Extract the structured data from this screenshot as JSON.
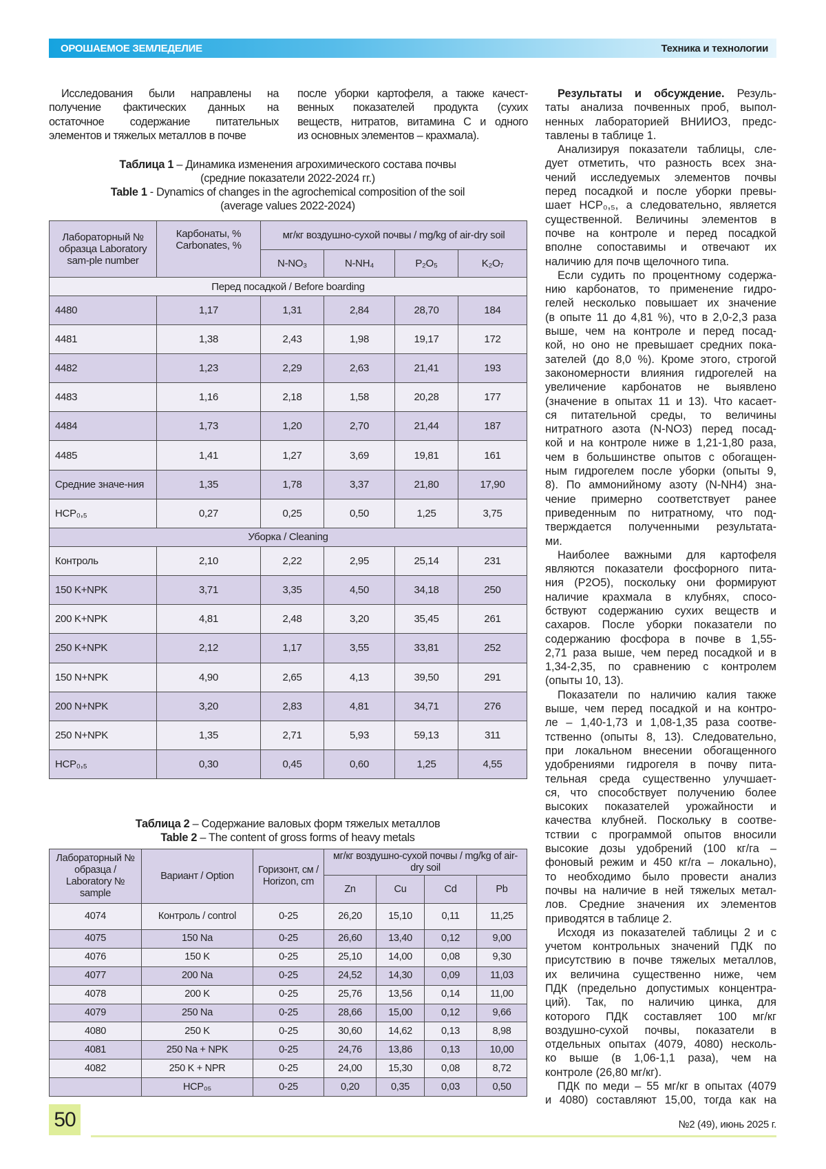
{
  "header": {
    "section": "ОРОШАЕМОЕ ЗЕМЛЕДЕЛИЕ",
    "rubric": "Техника и технологии"
  },
  "intro": {
    "col1": [
      "Исследования были направлены на",
      "получение фактических данных на",
      "остаточное содержание питательных",
      "элементов и тяжелых металлов в почве"
    ],
    "col2": [
      "после уборки картофеля, а также качест-",
      "венных показателей продукта (сухих",
      "веществ, нитратов, витамина С и одного",
      "из основных элементов – крахмала)."
    ]
  },
  "right_column": {
    "heading": "Результаты и обсуждение.",
    "paragraphs": [
      [
        " Резуль-",
        "таты анализа почвенных проб, выпол-",
        "ненных лабораторией ВНИИОЗ, предс-",
        "тавлены в таблице 1."
      ],
      [
        "Анализируя показатели таблицы, сле-",
        "дует отметить, что разность всех зна-",
        "чений исследуемых элементов почвы",
        "перед посадкой и после уборки превы-",
        "шает НСР₀,₅, а следовательно, является",
        "существенной. Величины элементов в",
        "почве на контроле и перед посадкой",
        "вполне сопоставимы и отвечают их",
        "наличию для почв щелочного типа."
      ],
      [
        "Если судить по процентному содержа-",
        "нию карбонатов, то применение гидро-",
        "гелей несколько повышает их значение",
        "(в опыте 11 до 4,81 %), что в 2,0-2,3 раза",
        "выше, чем на контроле и перед посад-",
        "кой, но оно не превышает средних пока-",
        "зателей (до 8,0 %). Кроме этого, строгой",
        "закономерности влияния гидрогелей на",
        "увеличение карбонатов не выявлено",
        "(значение в опытах 11 и 13). Что касает-",
        "ся питательной среды, то величины",
        "нитратного азота (N-NO3) перед посад-",
        "кой и на контроле ниже в 1,21-1,80 раза,",
        "чем в большинстве опытов с обогащен-",
        "ным гидрогелем после уборки (опыты 9,",
        "8). По аммонийному азоту (N-NH4) зна-",
        "чение примерно соответствует ранее",
        "приведенным по нитратному, что под-",
        "тверждается полученными результата-",
        "ми."
      ],
      [
        "Наиболее важными для картофеля",
        "являются показатели фосфорного пита-",
        "ния (P2O5), поскольку они формируют",
        "наличие крахмала в клубнях, спосо-",
        "бствуют содержанию сухих веществ и",
        "сахаров. После уборки показатели по",
        "содержанию фосфора в почве в 1,55-",
        "2,71 раза выше, чем перед посадкой и в",
        "1,34-2,35, по сравнению с контролем",
        "(опыты 10, 13)."
      ],
      [
        "Показатели по наличию калия также",
        "выше, чем перед посадкой и на контро-",
        "ле – 1,40-1,73 и 1,08-1,35 раза соотве-",
        "тственно (опыты 8, 13). Следовательно,",
        "при локальном внесении обогащенного",
        "удобрениями гидрогеля в почву пита-",
        "тельная среда существенно улучшает-",
        "ся, что способствует получению более",
        "высоких показателей урожайности и",
        "качества клубней. Поскольку в соотве-",
        "тствии с программой опытов вносили",
        "высокие дозы удобрений (100 кг/га –",
        "фоновый режим и 450 кг/га – локально),",
        "то необходимо было провести анализ",
        "почвы на наличие в ней тяжелых метал-",
        "лов. Средние значения их элементов",
        "приводятся в таблице 2."
      ],
      [
        "Исходя из показателей таблицы 2 и с",
        "учетом контрольных значений ПДК по",
        "присутствию в почве тяжелых металлов,",
        "их величина существенно ниже, чем",
        "ПДК (предельно допустимых концентра-",
        "ций). Так, по наличию цинка, для",
        "которого ПДК составляет 100 мг/кг",
        "воздушно-сухой почвы, показатели в",
        "отдельных опытах (4079, 4080) несколь-",
        "ко выше (в 1,06-1,1 раза), чем на",
        "контроле (26,80 мг/кг)."
      ],
      [
        "ПДК по меди – 55 мг/кг в опытах (4079",
        "и 4080) составляют 15,00, тогда как на"
      ]
    ]
  },
  "table1": {
    "caption_ru_label": "Таблица 1",
    "caption_ru": " – Динамика изменения агрохимического состава почвы",
    "caption_ru_2": "(средние показатели 2022-2024 гг.)",
    "caption_en_label": "Table 1",
    "caption_en": " - Dynamics of changes in the agrochemical composition of the soil",
    "caption_en_2": "(average values 2022-2024)",
    "headers": {
      "sample": "Лабораторный № образца Laboratory sam-ple number",
      "carbonates": "Карбонаты, % Carbonates, %",
      "units": "мг/кг воздушно-сухой почвы / mg/kg of air-dry soil",
      "cols": [
        "N-NO₃",
        "N-NH₄",
        "P₂O₅",
        "K₂O₇"
      ]
    },
    "sections": [
      {
        "label": "Перед посадкой / Before boarding",
        "rows": [
          [
            "4480",
            "1,17",
            "1,31",
            "2,84",
            "28,70",
            "184"
          ],
          [
            "4481",
            "1,38",
            "2,43",
            "1,98",
            "19,17",
            "172"
          ],
          [
            "4482",
            "1,23",
            "2,29",
            "2,63",
            "21,41",
            "193"
          ],
          [
            "4483",
            "1,16",
            "2,18",
            "1,58",
            "20,28",
            "177"
          ],
          [
            "4484",
            "1,73",
            "1,20",
            "2,70",
            "21,44",
            "187"
          ],
          [
            "4485",
            "1,41",
            "1,27",
            "3,69",
            "19,81",
            "161"
          ],
          [
            "Средние значе-ния",
            "1,35",
            "1,78",
            "3,37",
            "21,80",
            "17,90"
          ],
          [
            "НСР₀,₅",
            "0,27",
            "0,25",
            "0,50",
            "1,25",
            "3,75"
          ]
        ]
      },
      {
        "label": "Уборка / Cleaning",
        "rows": [
          [
            "Контроль",
            "2,10",
            "2,22",
            "2,95",
            "25,14",
            "231"
          ],
          [
            "150 K+NPK",
            "3,71",
            "3,35",
            "4,50",
            "34,18",
            "250"
          ],
          [
            "200 K+NPK",
            "4,81",
            "2,48",
            "3,20",
            "35,45",
            "261"
          ],
          [
            "250 K+NPK",
            "2,12",
            "1,17",
            "3,55",
            "33,81",
            "252"
          ],
          [
            "150 N+NPK",
            "4,90",
            "2,65",
            "4,13",
            "39,50",
            "291"
          ],
          [
            "200 N+NPK",
            "3,20",
            "2,83",
            "4,81",
            "34,71",
            "276"
          ],
          [
            "250 N+NPK",
            "1,35",
            "2,71",
            "5,93",
            "59,13",
            "311"
          ],
          [
            "НСР₀,₅",
            "0,30",
            "0,45",
            "0,60",
            "1,25",
            "4,55"
          ]
        ]
      }
    ]
  },
  "table2": {
    "caption_ru_label": "Таблица 2",
    "caption_ru": " – Содержание валовых форм тяжелых металлов",
    "caption_en_label": "Table 2",
    "caption_en": " – The content of gross forms of heavy metals",
    "headers": {
      "sample": "Лабораторный № образца / Laboratory № sample",
      "option": "Вариант / Option",
      "horizon": "Горизонт, см / Horizon, cm",
      "units": "мг/кг воздушно-сухой почвы / mg/kg of air-dry soil",
      "cols": [
        "Zn",
        "Cu",
        "Cd",
        "Pb"
      ]
    },
    "rows": [
      [
        "4074",
        "Контроль / control",
        "0-25",
        "26,20",
        "15,10",
        "0,11",
        "11,25"
      ],
      [
        "4075",
        "150 Na",
        "0-25",
        "26,60",
        "13,40",
        "0,12",
        "9,00"
      ],
      [
        "4076",
        "150 K",
        "0-25",
        "25,10",
        "14,00",
        "0,08",
        "9,30"
      ],
      [
        "4077",
        "200 Na",
        "0-25",
        "24,52",
        "14,30",
        "0,09",
        "11,03"
      ],
      [
        "4078",
        "200 K",
        "0-25",
        "25,76",
        "13,56",
        "0,14",
        "11,00"
      ],
      [
        "4079",
        "250 Na",
        "0-25",
        "28,66",
        "15,00",
        "0,12",
        "9,66"
      ],
      [
        "4080",
        "250 K",
        "0-25",
        "30,60",
        "14,62",
        "0,13",
        "8,98"
      ],
      [
        "4081",
        "250 Na + NPK",
        "0-25",
        "24,76",
        "13,86",
        "0,13",
        "10,00"
      ],
      [
        "4082",
        "250 K + NPR",
        "0-25",
        "24,00",
        "15,30",
        "0,08",
        "8,72"
      ],
      [
        "",
        "НСР₀₅",
        "0-25",
        "0,20",
        "0,35",
        "0,03",
        "0,50"
      ]
    ]
  },
  "footer": {
    "page_number": "50",
    "issue": "№2 (49), июнь 2025 г."
  },
  "colors": {
    "header_blue": "#16a3df",
    "row_purple": "#d7d1e8",
    "row_light": "#efedf5",
    "page_box": "#dfee9a"
  }
}
